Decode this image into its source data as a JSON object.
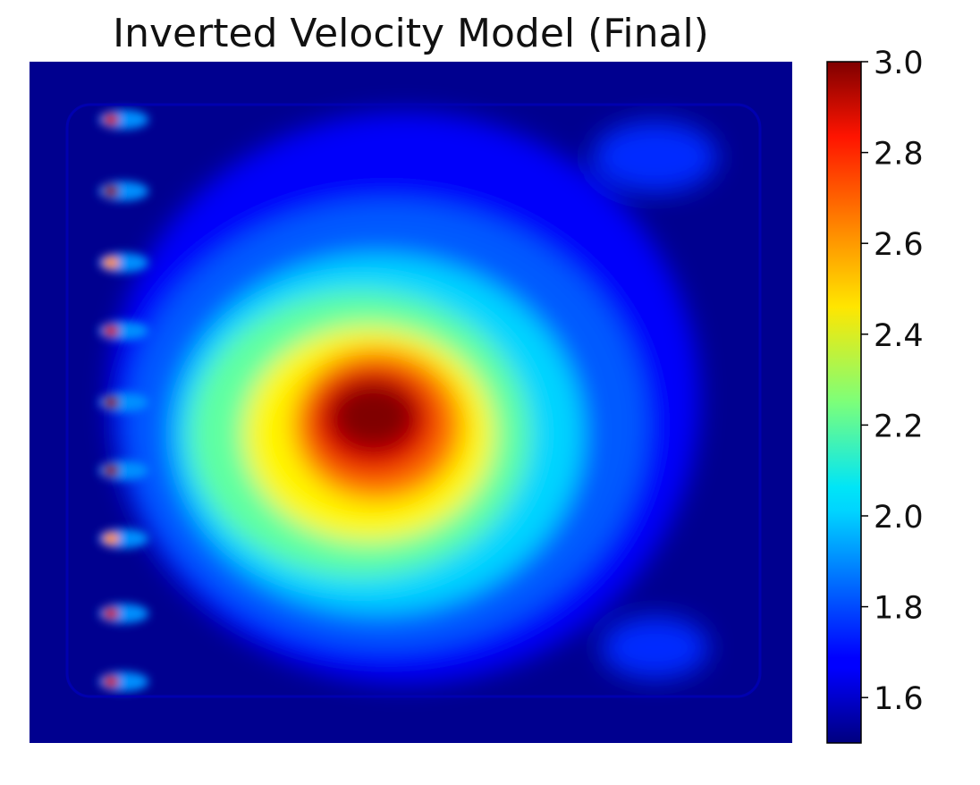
{
  "chart_data": {
    "type": "heatmap",
    "title": "Inverted Velocity Model (Final)",
    "xlabel": "",
    "ylabel": "",
    "colormap": "jet",
    "background_value": 1.5,
    "colorbar": {
      "range": [
        1.5,
        3.0
      ],
      "ticks": [
        1.6,
        1.8,
        2.0,
        2.2,
        2.4,
        2.6,
        2.8,
        3.0
      ],
      "tick_labels": [
        "1.6",
        "1.8",
        "2.0",
        "2.2",
        "2.4",
        "2.6",
        "2.8",
        "3.0"
      ]
    },
    "sources": [
      {
        "row": 0.085,
        "col": 0.1,
        "value": 2.9
      },
      {
        "row": 0.19,
        "col": 0.1,
        "value": 3.0
      },
      {
        "row": 0.295,
        "col": 0.1,
        "value": 2.6
      },
      {
        "row": 0.395,
        "col": 0.1,
        "value": 2.9
      },
      {
        "row": 0.5,
        "col": 0.1,
        "value": 3.0
      },
      {
        "row": 0.6,
        "col": 0.1,
        "value": 3.0
      },
      {
        "row": 0.7,
        "col": 0.1,
        "value": 2.6
      },
      {
        "row": 0.81,
        "col": 0.1,
        "value": 2.9
      },
      {
        "row": 0.91,
        "col": 0.1,
        "value": 2.9
      }
    ],
    "anomaly": {
      "center_row": 0.52,
      "center_col": 0.48,
      "peak_value": 3.0
    },
    "grid": false
  }
}
